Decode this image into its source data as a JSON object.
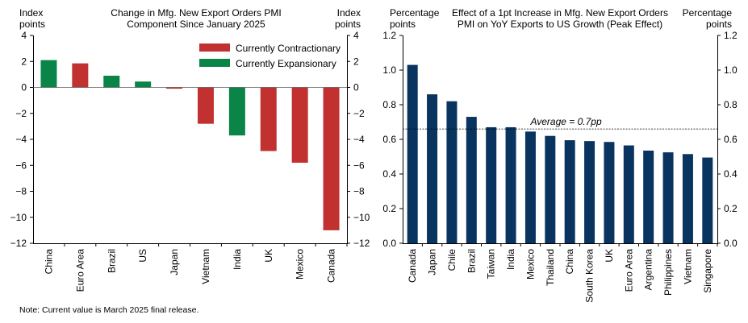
{
  "chart_data": [
    {
      "type": "bar",
      "title_line1": "Change in Mfg. New Export Orders PMI",
      "title_line2": "Component Since January 2025",
      "ylabel_left": [
        "Index",
        "points"
      ],
      "ylabel_right": [
        "Index",
        "points"
      ],
      "ylim": [
        -12,
        4
      ],
      "yticks": [
        4,
        2,
        0,
        -2,
        -4,
        -6,
        -8,
        -10,
        -12
      ],
      "ytick_labels": [
        "4",
        "2",
        "0",
        "−2",
        "−4",
        "−6",
        "−8",
        "−10",
        "−12"
      ],
      "categories": [
        "China",
        "Euro Area",
        "Brazil",
        "US",
        "Japan",
        "Vietnam",
        "India",
        "UK",
        "Mexico",
        "Canada"
      ],
      "values": [
        2.1,
        1.85,
        0.9,
        0.45,
        -0.1,
        -2.8,
        -3.7,
        -4.9,
        -5.8,
        -11.0
      ],
      "status": [
        "exp",
        "con",
        "exp",
        "exp",
        "con",
        "con",
        "exp",
        "con",
        "con",
        "con"
      ],
      "legend": [
        {
          "key": "con",
          "label": "Currently Contractionary",
          "color": "#c0312f"
        },
        {
          "key": "exp",
          "label": "Currently Expansionary",
          "color": "#0a8547"
        }
      ],
      "legend_position": "top-right"
    },
    {
      "type": "bar",
      "title_line1": "Effect of a 1pt Increase in Mfg. New Export Orders",
      "title_line2": "PMI on YoY Exports to US Growth (Peak Effect)",
      "ylabel_left": [
        "Percentage",
        "points"
      ],
      "ylabel_right": [
        "Percentage",
        "points"
      ],
      "ylim": [
        0,
        1.2
      ],
      "yticks": [
        1.2,
        1.0,
        0.8,
        0.6,
        0.4,
        0.2,
        0.0
      ],
      "ytick_labels": [
        "1.2",
        "1.0",
        "0.8",
        "0.6",
        "0.4",
        "0.2",
        "0.0"
      ],
      "categories": [
        "Canada",
        "Japan",
        "Chile",
        "Brazil",
        "Taiwan",
        "India",
        "Mexico",
        "Thailand",
        "China",
        "South Korea",
        "UK",
        "Euro Area",
        "Argentina",
        "Philippines",
        "Vietnam",
        "Singapore"
      ],
      "values": [
        1.03,
        0.86,
        0.82,
        0.73,
        0.67,
        0.67,
        0.645,
        0.62,
        0.595,
        0.59,
        0.585,
        0.565,
        0.535,
        0.525,
        0.515,
        0.495
      ],
      "color": "#0a3460",
      "average": 0.66,
      "average_label": "Average = 0.7pp"
    }
  ],
  "note": "Note: Current value is March 2025 final release."
}
